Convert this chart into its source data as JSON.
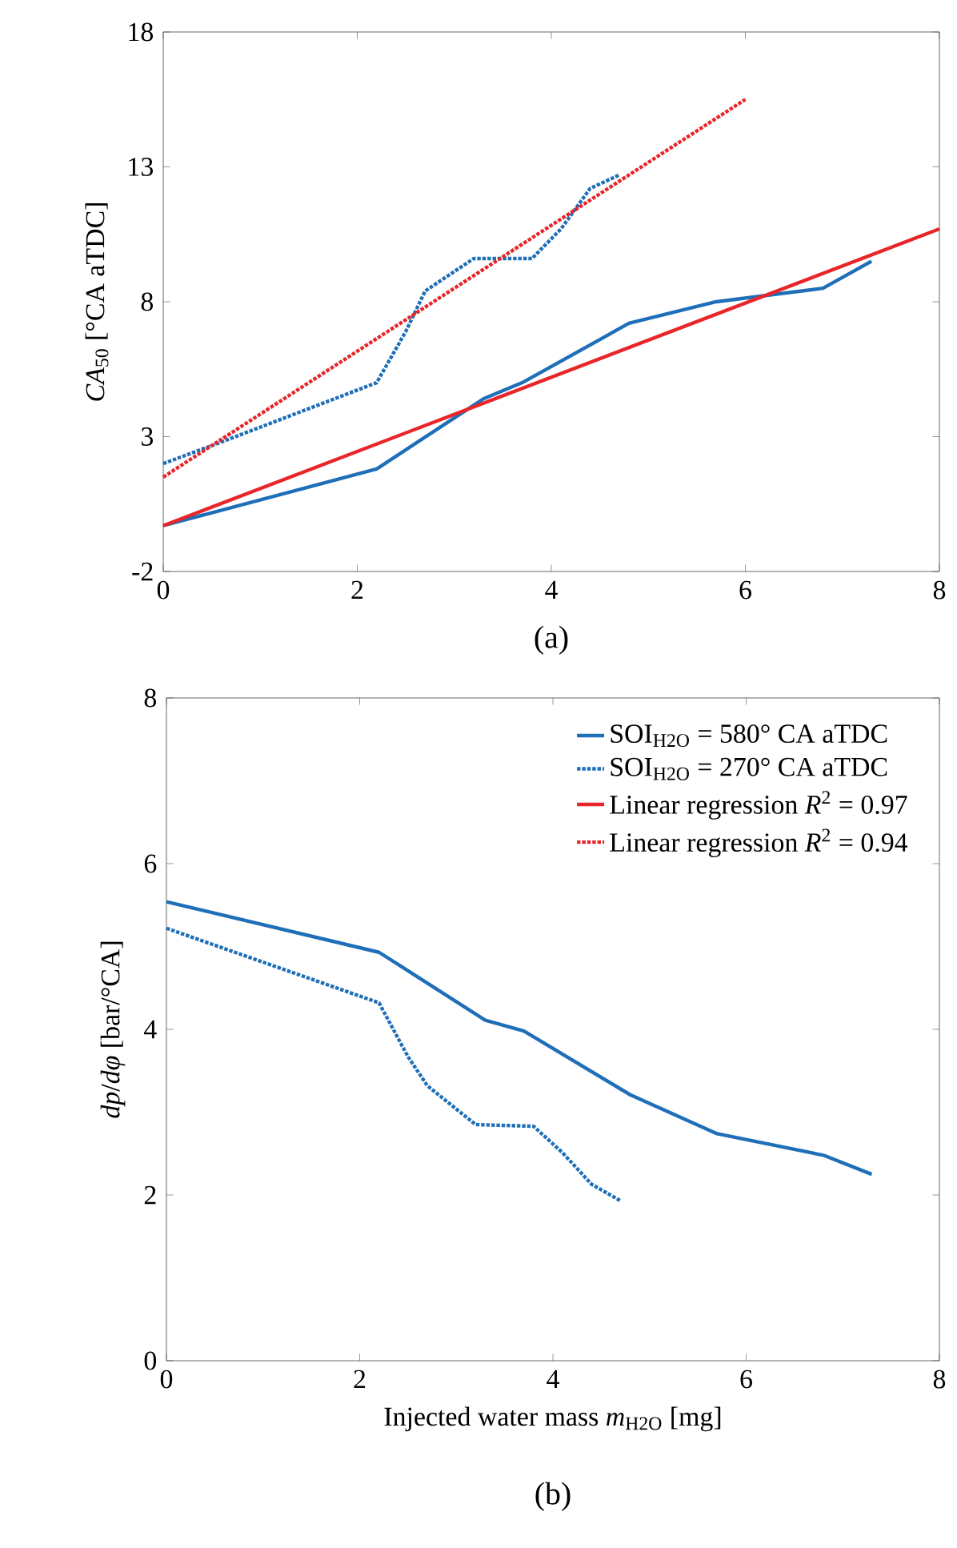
{
  "chart_data": [
    {
      "type": "line",
      "xlim": [
        0,
        8
      ],
      "ylim": [
        -2,
        18
      ],
      "xticks": [
        0,
        2,
        4,
        6,
        8
      ],
      "yticks": [
        -2,
        3,
        8,
        13,
        18
      ],
      "ylabel": "*CA*$_{50}$ [°CA aTDC]",
      "annotations": [
        "(a)"
      ],
      "series": [
        {
          "color": "#1f6fb8",
          "line_style": "solid",
          "x": [
            0,
            2.2,
            3.3,
            3.7,
            4.8,
            5.7,
            6.8,
            7.3
          ],
          "values": [
            -0.3,
            1.8,
            4.4,
            5.0,
            7.2,
            8.0,
            8.5,
            9.5
          ]
        },
        {
          "color": "#1f6fb8",
          "line_style": "dotted",
          "x": [
            0,
            0.6,
            2.2,
            2.5,
            2.7,
            3.2,
            3.8,
            4.1,
            4.4,
            4.7
          ],
          "values": [
            2.0,
            2.8,
            5.0,
            6.9,
            8.4,
            9.6,
            9.6,
            10.7,
            12.2,
            12.7
          ]
        },
        {
          "name": "Linear regression *R*$^{2}$ = 0.97",
          "color": "#e8262a",
          "line_style": "solid",
          "x": [
            0,
            8
          ],
          "values": [
            -0.3,
            10.7
          ]
        },
        {
          "name": "Linear regression *R*$^{2}$ = 0.94",
          "color": "#e8262a",
          "line_style": "dotted",
          "x": [
            0,
            6
          ],
          "values": [
            1.5,
            15.5
          ]
        }
      ]
    },
    {
      "type": "line",
      "xlim": [
        0,
        8
      ],
      "ylim": [
        0,
        8
      ],
      "xticks": [
        0,
        2,
        4,
        6,
        8
      ],
      "yticks": [
        0,
        2,
        4,
        6,
        8
      ],
      "xlabel": "Injected water mass *m*$_{H2O}$ [mg]",
      "ylabel": "*dp*/*dφ* [bar/°CA]",
      "annotations": [
        "(b)"
      ],
      "legend": "top right",
      "series": [
        {
          "name": "SOI$_{H2O}$ = 580° CA aTDC",
          "color": "#1f6fb8",
          "line_style": "solid",
          "x": [
            0,
            2.2,
            3.3,
            3.7,
            4.8,
            5.7,
            6.8,
            7.3
          ],
          "values": [
            5.54,
            4.93,
            4.11,
            3.98,
            3.21,
            2.74,
            2.48,
            2.25
          ]
        },
        {
          "name": "SOI$_{H2O}$ = 270° CA aTDC",
          "color": "#1f6fb8",
          "line_style": "dotted",
          "x": [
            0,
            2.2,
            2.5,
            2.7,
            3.2,
            3.8,
            4.1,
            4.4,
            4.7
          ],
          "values": [
            5.22,
            4.32,
            3.67,
            3.32,
            2.85,
            2.83,
            2.51,
            2.13,
            1.93
          ]
        }
      ]
    }
  ]
}
